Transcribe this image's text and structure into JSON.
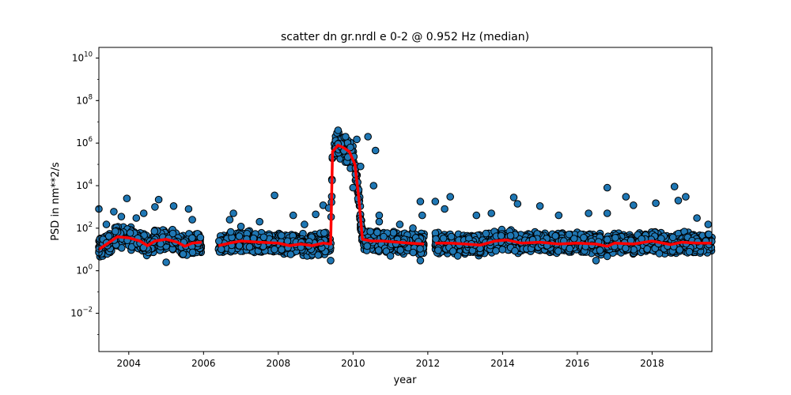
{
  "chart_data": {
    "type": "scatter",
    "title": "scatter dn gr.nrdl e 0-2 @ 0.952 Hz (median)",
    "xlabel": "year",
    "ylabel": "PSD in nm**2/s",
    "xlim": [
      2003.2,
      2019.6
    ],
    "ylim_log10": [
      -3.8,
      10.5
    ],
    "yscale": "log",
    "grid": false,
    "x_ticks": [
      {
        "value": 2004,
        "label": "2004"
      },
      {
        "value": 2006,
        "label": "2006"
      },
      {
        "value": 2008,
        "label": "2008"
      },
      {
        "value": 2010,
        "label": "2010"
      },
      {
        "value": 2012,
        "label": "2012"
      },
      {
        "value": 2014,
        "label": "2014"
      },
      {
        "value": 2016,
        "label": "2016"
      },
      {
        "value": 2018,
        "label": "2018"
      }
    ],
    "y_ticks": [
      {
        "exp": -2,
        "base": "10",
        "sup": "−2"
      },
      {
        "exp": 0,
        "base": "10",
        "sup": "0"
      },
      {
        "exp": 2,
        "base": "10",
        "sup": "2"
      },
      {
        "exp": 4,
        "base": "10",
        "sup": "4"
      },
      {
        "exp": 6,
        "base": "10",
        "sup": "6"
      },
      {
        "exp": 8,
        "base": "10",
        "sup": "8"
      },
      {
        "exp": 10,
        "base": "10",
        "sup": "10"
      }
    ],
    "colors": {
      "points": "#1f77b4",
      "point_edge": "#000000",
      "median": "#ff0000"
    },
    "segments": [
      {
        "start": 2003.2,
        "end": 2005.95
      },
      {
        "start": 2006.4,
        "end": 2009.45
      },
      {
        "start": 2009.5,
        "end": 2010.2
      },
      {
        "start": 2010.2,
        "end": 2011.9
      },
      {
        "start": 2012.2,
        "end": 2019.6
      }
    ],
    "scatter_points": [
      {
        "x": 2003.2,
        "y": 800
      },
      {
        "x": 2003.4,
        "y": 150
      },
      {
        "x": 2003.6,
        "y": 600
      },
      {
        "x": 2003.8,
        "y": 350
      },
      {
        "x": 2003.95,
        "y": 2500
      },
      {
        "x": 2004.2,
        "y": 300
      },
      {
        "x": 2004.4,
        "y": 500
      },
      {
        "x": 2004.7,
        "y": 1000
      },
      {
        "x": 2004.8,
        "y": 2200
      },
      {
        "x": 2005.0,
        "y": 2.5
      },
      {
        "x": 2005.2,
        "y": 1100
      },
      {
        "x": 2005.6,
        "y": 800
      },
      {
        "x": 2005.7,
        "y": 250
      },
      {
        "x": 2006.7,
        "y": 250
      },
      {
        "x": 2006.8,
        "y": 500
      },
      {
        "x": 2007.0,
        "y": 120
      },
      {
        "x": 2007.5,
        "y": 200
      },
      {
        "x": 2007.9,
        "y": 3500
      },
      {
        "x": 2008.4,
        "y": 400
      },
      {
        "x": 2008.7,
        "y": 150
      },
      {
        "x": 2009.0,
        "y": 450
      },
      {
        "x": 2009.2,
        "y": 1200
      },
      {
        "x": 2009.35,
        "y": 900
      },
      {
        "x": 2009.4,
        "y": 3
      },
      {
        "x": 2009.6,
        "y": 4000000
      },
      {
        "x": 2009.8,
        "y": 2000000
      },
      {
        "x": 2010.0,
        "y": 8000
      },
      {
        "x": 2010.1,
        "y": 1500000
      },
      {
        "x": 2010.2,
        "y": 80000
      },
      {
        "x": 2010.4,
        "y": 2000000
      },
      {
        "x": 2010.55,
        "y": 10000
      },
      {
        "x": 2010.6,
        "y": 450000
      },
      {
        "x": 2010.7,
        "y": 400
      },
      {
        "x": 2010.7,
        "y": 200
      },
      {
        "x": 2011.0,
        "y": 5
      },
      {
        "x": 2011.25,
        "y": 150
      },
      {
        "x": 2011.6,
        "y": 100
      },
      {
        "x": 2011.8,
        "y": 1800
      },
      {
        "x": 2011.8,
        "y": 3
      },
      {
        "x": 2011.85,
        "y": 400
      },
      {
        "x": 2012.2,
        "y": 1800
      },
      {
        "x": 2012.45,
        "y": 800
      },
      {
        "x": 2012.6,
        "y": 3000
      },
      {
        "x": 2012.8,
        "y": 5
      },
      {
        "x": 2013.3,
        "y": 400
      },
      {
        "x": 2013.7,
        "y": 500
      },
      {
        "x": 2014.3,
        "y": 2800
      },
      {
        "x": 2014.4,
        "y": 1400
      },
      {
        "x": 2015.0,
        "y": 1100
      },
      {
        "x": 2015.5,
        "y": 400
      },
      {
        "x": 2016.3,
        "y": 500
      },
      {
        "x": 2016.5,
        "y": 3
      },
      {
        "x": 2016.8,
        "y": 8000
      },
      {
        "x": 2016.8,
        "y": 500
      },
      {
        "x": 2017.3,
        "y": 3000
      },
      {
        "x": 2017.5,
        "y": 1200
      },
      {
        "x": 2018.1,
        "y": 1500
      },
      {
        "x": 2018.6,
        "y": 9000
      },
      {
        "x": 2018.7,
        "y": 2000
      },
      {
        "x": 2018.9,
        "y": 3000
      },
      {
        "x": 2019.2,
        "y": 300
      },
      {
        "x": 2019.5,
        "y": 150
      }
    ],
    "median_line": [
      [
        2003.2,
        10
      ],
      [
        2003.45,
        20
      ],
      [
        2003.7,
        40
      ],
      [
        2004.0,
        35
      ],
      [
        2004.3,
        25
      ],
      [
        2004.5,
        15
      ],
      [
        2004.7,
        25
      ],
      [
        2005.0,
        30
      ],
      [
        2005.3,
        22
      ],
      [
        2005.5,
        14
      ],
      [
        2005.7,
        20
      ],
      [
        2005.95,
        22
      ],
      null,
      [
        2006.4,
        15
      ],
      [
        2006.7,
        20
      ],
      [
        2007.0,
        25
      ],
      [
        2007.5,
        22
      ],
      [
        2008.0,
        20
      ],
      [
        2008.3,
        15
      ],
      [
        2008.6,
        18
      ],
      [
        2008.9,
        15
      ],
      [
        2009.2,
        20
      ],
      [
        2009.4,
        18
      ],
      [
        2009.45,
        400000
      ],
      [
        2009.6,
        800000
      ],
      [
        2009.75,
        600000
      ],
      [
        2009.9,
        400000
      ],
      [
        2010.05,
        100000
      ],
      [
        2010.15,
        3000
      ],
      [
        2010.25,
        30
      ],
      [
        2010.5,
        25
      ],
      [
        2010.8,
        25
      ],
      [
        2011.2,
        22
      ],
      [
        2011.5,
        20
      ],
      [
        2011.9,
        18
      ],
      null,
      [
        2012.2,
        20
      ],
      [
        2012.6,
        20
      ],
      [
        2013.0,
        18
      ],
      [
        2013.4,
        16
      ],
      [
        2013.8,
        25
      ],
      [
        2014.1,
        28
      ],
      [
        2014.5,
        20
      ],
      [
        2015.0,
        22
      ],
      [
        2015.5,
        18
      ],
      [
        2016.0,
        20
      ],
      [
        2016.5,
        18
      ],
      [
        2016.8,
        14
      ],
      [
        2017.0,
        20
      ],
      [
        2017.5,
        18
      ],
      [
        2018.0,
        25
      ],
      [
        2018.5,
        17
      ],
      [
        2018.8,
        22
      ],
      [
        2019.2,
        20
      ],
      [
        2019.6,
        20
      ]
    ]
  }
}
